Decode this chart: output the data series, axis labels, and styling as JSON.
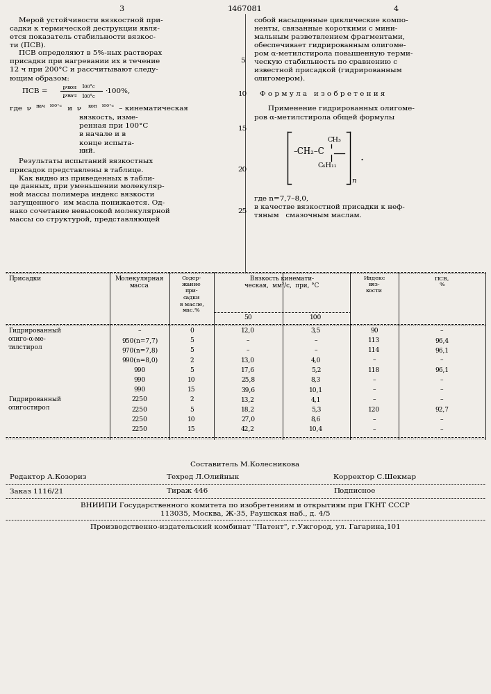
{
  "page_width": 7.07,
  "page_height": 10.0,
  "bg_color": "#f0ede8",
  "header": {
    "left_num": "3",
    "center_num": "1467081",
    "right_num": "4"
  },
  "footer": {
    "compositor": "Составитель М.Колесникова",
    "editor_label": "Редактор А.Козориз",
    "techred_label": "Техред Л.Олийнык",
    "corrector_label": "Корректор С.Шекмар",
    "order": "Заказ 1116/21",
    "tirazh": "Тираж 446",
    "podpisnoe": "Подписное",
    "vnipi_line1": "ВНИИПИ Государственного комитета по изобретениям и открытиям при ГКНТ СССР",
    "vnipi_line2": "113035, Москва, Ж-35, Раушская наб., д. 4/5",
    "publisher": "Производственно-издательский комбинат \"Патент\", г.Ужгород, ул. Гагарина,101"
  }
}
